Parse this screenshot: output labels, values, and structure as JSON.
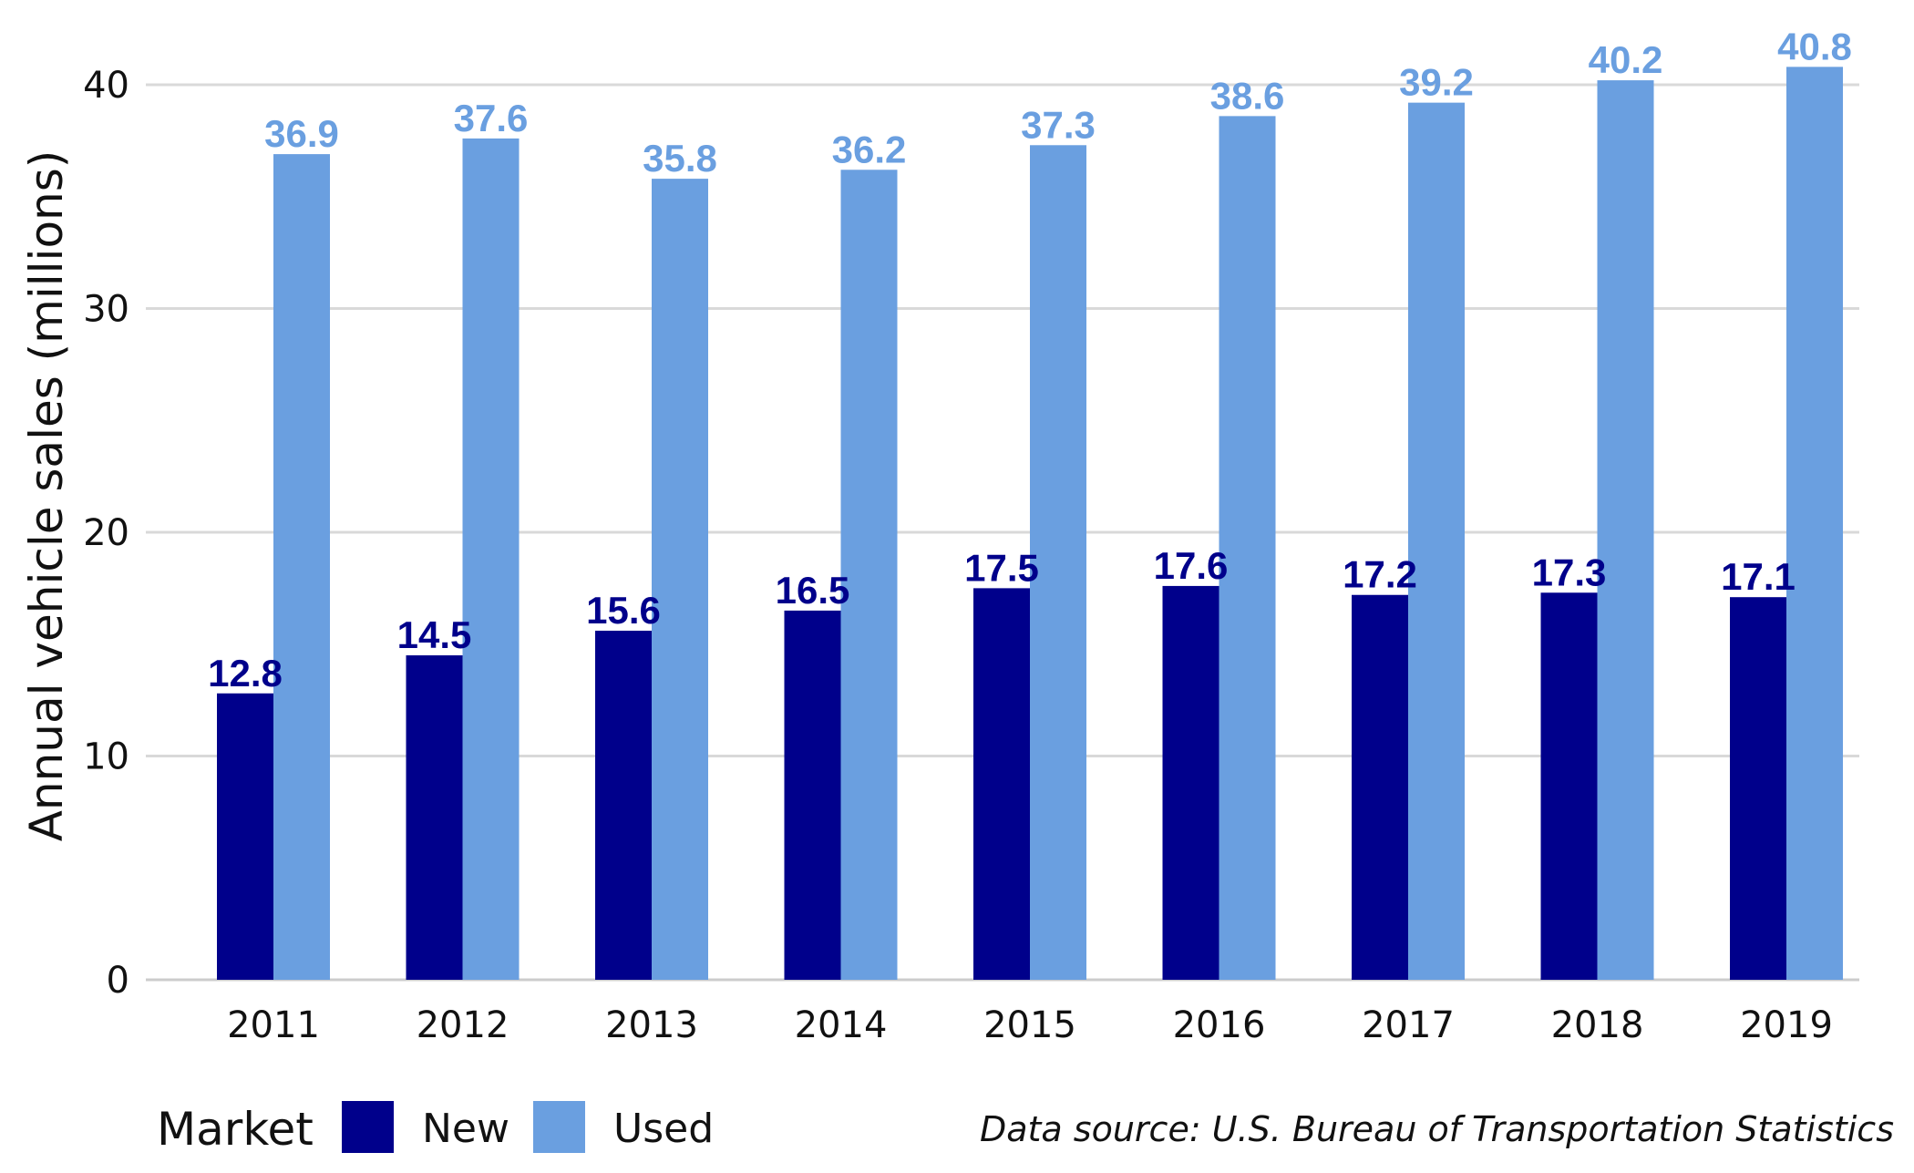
{
  "chart_data": {
    "type": "bar",
    "categories": [
      "2011",
      "2012",
      "2013",
      "2014",
      "2015",
      "2016",
      "2017",
      "2018",
      "2019"
    ],
    "series": [
      {
        "name": "New",
        "color": "#00008b",
        "values": [
          12.8,
          14.5,
          15.6,
          16.5,
          17.5,
          17.6,
          17.2,
          17.3,
          17.1
        ]
      },
      {
        "name": "Used",
        "color": "#6a9fe0",
        "values": [
          36.9,
          37.6,
          35.8,
          36.2,
          37.3,
          38.6,
          39.2,
          40.2,
          40.8
        ]
      }
    ],
    "ylabel": "Annual vehicle sales (millions)",
    "ylim": [
      0,
      40
    ],
    "yticks": [
      0,
      10,
      20,
      30,
      40
    ],
    "legend_title": "Market",
    "legend_position": "bottom-left",
    "caption": "Data source: U.S. Bureau of Transportation Statistics",
    "grid": "horizontal"
  }
}
